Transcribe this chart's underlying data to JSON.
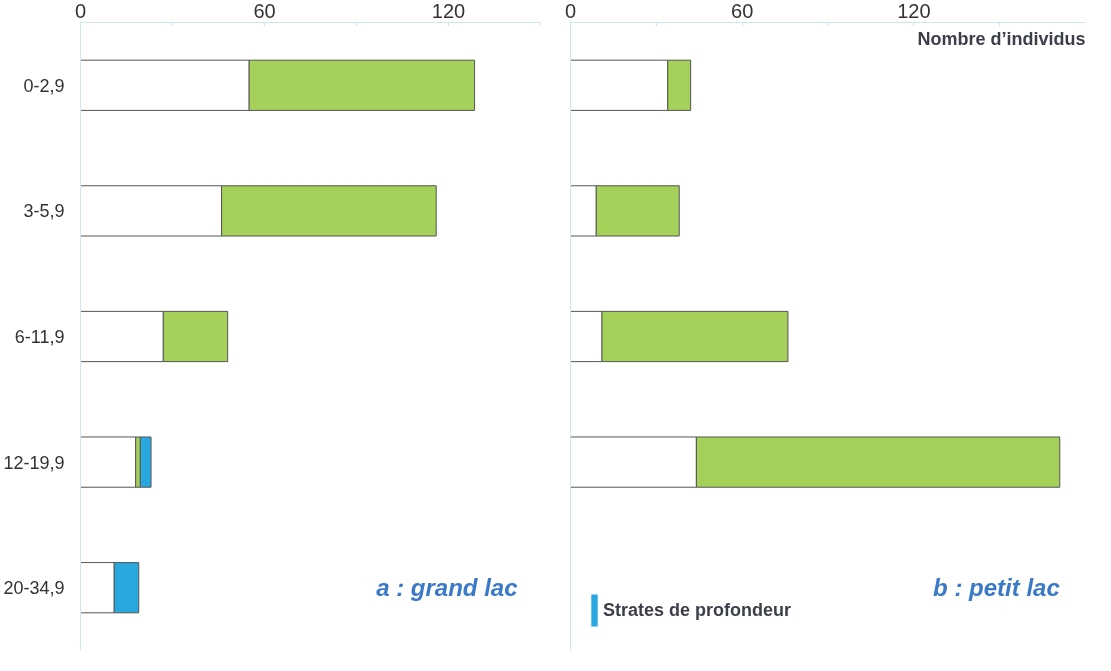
{
  "chart_data": [
    {
      "type": "bar",
      "orientation": "horizontal",
      "stacked": true,
      "title": "a : grand lac",
      "categories": [
        "0-2,9",
        "3-5,9",
        "6-11,9",
        "12-19,9",
        "20-34,9"
      ],
      "series": [
        {
          "color": "#ffffff",
          "values": [
            55,
            46,
            27,
            18,
            11
          ]
        },
        {
          "color": "#a5d15a",
          "values": [
            73.5,
            70,
            21,
            1.5,
            null
          ]
        },
        {
          "color": "#29a8e0",
          "values": [
            null,
            null,
            null,
            3.5,
            8
          ]
        }
      ],
      "xlim": [
        0,
        150
      ],
      "xticks": [
        0,
        {
          "value": 30,
          "label": null
        },
        60,
        {
          "value": 90,
          "label": null
        },
        120,
        {
          "value": 150,
          "label": null
        }
      ]
    },
    {
      "type": "bar",
      "orientation": "horizontal",
      "stacked": true,
      "title": "b : petit lac",
      "xlabel": "Nombre d’individus",
      "categories": [
        null,
        null,
        null,
        null,
        null
      ],
      "series": [
        {
          "color": "#ffffff",
          "values": [
            34,
            9,
            11,
            44,
            null
          ]
        },
        {
          "color": "#a5d15a",
          "values": [
            8,
            29,
            65,
            127,
            null
          ]
        },
        {
          "name": "Strates de profondeur",
          "color": "#29a8e0",
          "values": [
            null,
            null,
            null,
            null,
            null
          ]
        }
      ],
      "xlim": [
        0,
        180
      ],
      "xticks": [
        0,
        {
          "value": 30,
          "label": null
        },
        60,
        {
          "value": 90,
          "label": null
        },
        120,
        {
          "value": 150,
          "label": null
        }
      ],
      "tick_labels": "x",
      "legend": "bottom left"
    }
  ]
}
